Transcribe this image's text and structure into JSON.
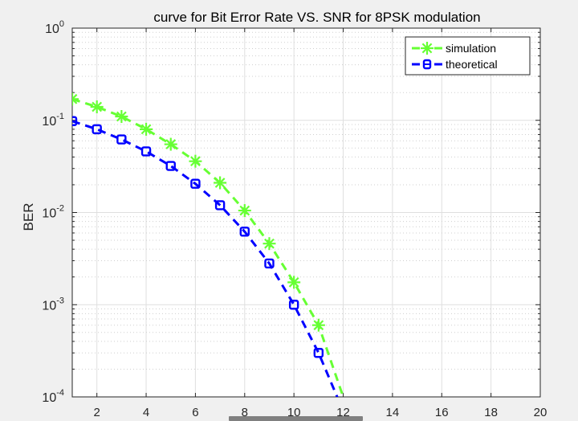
{
  "chart_data": {
    "type": "line",
    "title": "curve for Bit Error Rate VS. SNR for 8PSK modulation",
    "xlabel": "",
    "ylabel": "BER",
    "xlim": [
      1,
      20
    ],
    "ylim": [
      0.0001,
      1
    ],
    "yscale": "log",
    "grid": true,
    "minor_grid": true,
    "legend_position": "top-right",
    "x_ticks": [
      2,
      4,
      6,
      8,
      10,
      12,
      14,
      16,
      18,
      20
    ],
    "x_tick_labels": [
      "2",
      "4",
      "6",
      "8",
      "10",
      "12",
      "14",
      "16",
      "18",
      "20"
    ],
    "y_ticks": [
      {
        "value": 1,
        "base": "10",
        "exp": "0"
      },
      {
        "value": 0.1,
        "base": "10",
        "exp": "-1"
      },
      {
        "value": 0.01,
        "base": "10",
        "exp": "-2"
      },
      {
        "value": 0.001,
        "base": "10",
        "exp": "-3"
      },
      {
        "value": 0.0001,
        "base": "10",
        "exp": "-4"
      }
    ],
    "series": [
      {
        "name": "simulation",
        "color": "#66ff33",
        "marker": "asterisk",
        "linestyle": "dashed",
        "x": [
          1,
          2,
          3,
          4,
          5,
          6,
          7,
          8,
          9,
          10,
          11,
          12
        ],
        "values": [
          0.17,
          0.14,
          0.11,
          0.08,
          0.055,
          0.036,
          0.021,
          0.0105,
          0.0046,
          0.00175,
          0.0006,
          0.0001
        ]
      },
      {
        "name": "theoretical",
        "color": "#0000ff",
        "marker": "square",
        "linestyle": "dashed",
        "x": [
          1,
          2,
          3,
          4,
          5,
          6,
          7,
          8,
          9,
          10,
          11,
          12
        ],
        "values": [
          0.098,
          0.08,
          0.062,
          0.046,
          0.032,
          0.0205,
          0.012,
          0.0062,
          0.0028,
          0.001,
          0.0003,
          7e-05
        ]
      }
    ]
  }
}
